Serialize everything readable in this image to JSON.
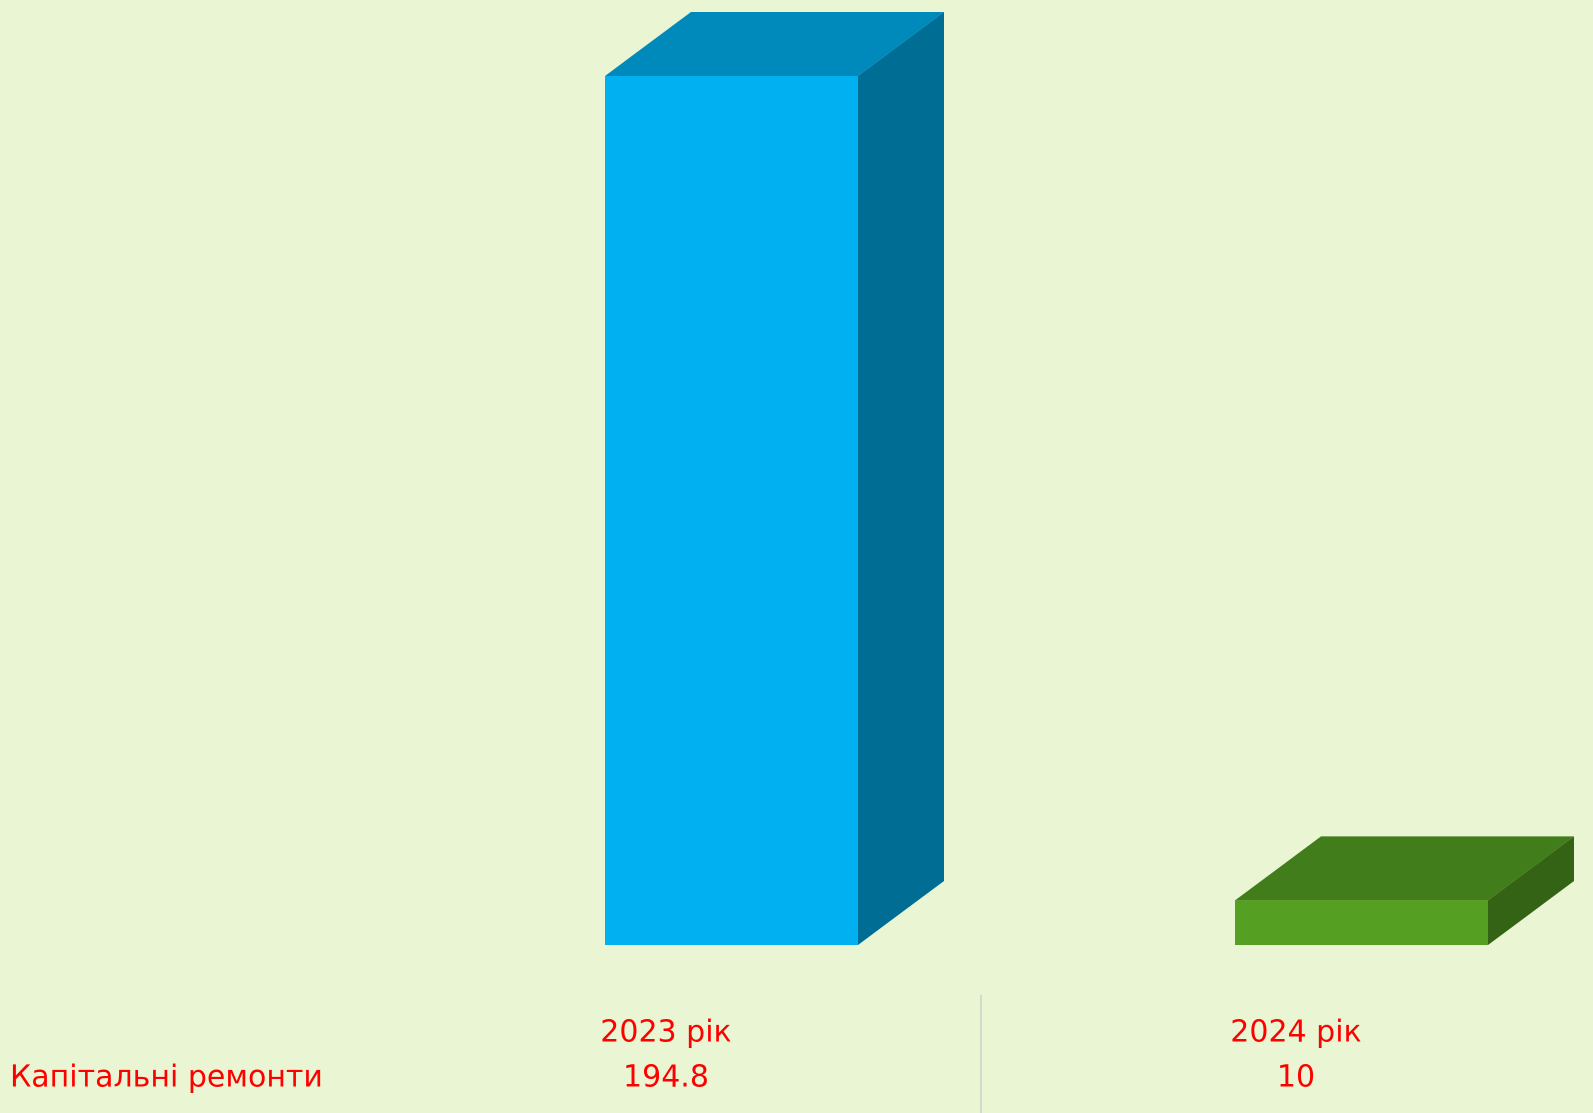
{
  "chart_data": {
    "type": "bar",
    "categories": [
      "2023 рік",
      "2024 рік"
    ],
    "series": [
      {
        "name": "Капітальні ремонти",
        "values": [
          194.8,
          10
        ],
        "colors": [
          "#00b0f0",
          "#55a022"
        ]
      }
    ]
  }
}
